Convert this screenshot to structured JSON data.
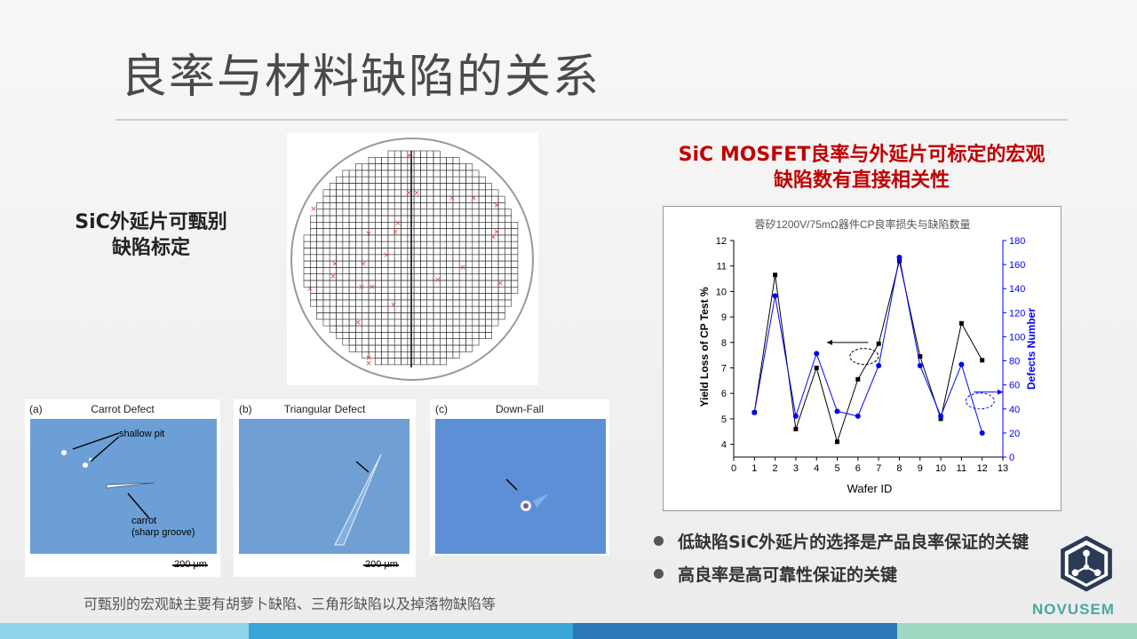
{
  "slide": {
    "title": "良率与材料缺陷的关系",
    "left_caption_line1": "SiC外延片可甄别",
    "left_caption_line2": "缺陷标定",
    "bottom_caption": "可甄别的宏观缺主要有胡萝卜缺陷、三角形缺陷以及掉落物缺陷等",
    "right_heading_line1": "SiC MOSFET良率与外延片可标定的宏观",
    "right_heading_line2": "缺陷数有直接相关性",
    "bullets": [
      "低缺陷SiC外延片的选择是产品良率保证的关键",
      "高良率是高可靠性保证的关键"
    ],
    "logo_text": "NOVUSEM"
  },
  "micrographs": [
    {
      "letter": "(a)",
      "title": "Carrot Defect",
      "labels": [
        "shallow pit",
        "carrot",
        "(sharp groove)"
      ],
      "scale": "200 μm"
    },
    {
      "letter": "(b)",
      "title": "Triangular Defect",
      "scale": "200 μm"
    },
    {
      "letter": "(c)",
      "title": "Down-Fall"
    }
  ],
  "colors": {
    "title": "#4a4a4a",
    "heading_red": "#c00000",
    "series_black": "#000000",
    "series_blue": "#0000ff",
    "logo_green": "#4aa7a0",
    "logo_navy": "#2b3a55"
  },
  "chart_data": {
    "type": "line",
    "title": "蓉矽1200V/75mΩ器件CP良率损失与缺陷数量",
    "xlabel": "Wafer ID",
    "ylabel": "Yield Loss of CP Test %",
    "y2label": "Defects Number",
    "xlim": [
      0,
      13
    ],
    "ylim": [
      3.5,
      12
    ],
    "y2lim": [
      0,
      180
    ],
    "x_ticks": [
      0,
      1,
      2,
      3,
      4,
      5,
      6,
      7,
      8,
      9,
      10,
      11,
      12,
      13
    ],
    "y_ticks": [
      4,
      5,
      6,
      7,
      8,
      9,
      10,
      11,
      12
    ],
    "y2_ticks": [
      0,
      20,
      40,
      60,
      80,
      100,
      120,
      140,
      160,
      180
    ],
    "x": [
      1,
      2,
      3,
      4,
      5,
      6,
      7,
      8,
      9,
      10,
      11,
      12
    ],
    "series": [
      {
        "name": "Yield Loss",
        "axis": "left",
        "values": [
          5.25,
          10.65,
          4.6,
          7.0,
          4.1,
          6.55,
          7.95,
          11.2,
          7.45,
          5.0,
          8.75,
          7.3
        ]
      },
      {
        "name": "Defects",
        "axis": "right",
        "values": [
          37,
          134,
          34,
          86,
          38,
          34,
          76,
          166,
          76,
          34,
          77,
          20
        ]
      }
    ],
    "grid": false
  }
}
